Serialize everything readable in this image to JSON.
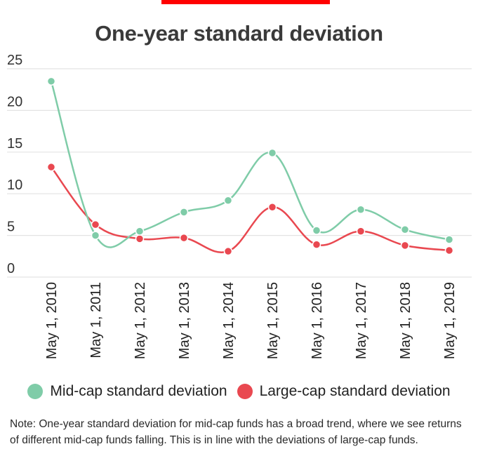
{
  "colors": {
    "accent_bar": "#ff0000",
    "mid_cap": "#7fcca8",
    "large_cap": "#e94850",
    "grid": "#e3e3e3"
  },
  "chart_data": {
    "type": "line",
    "title": "One-year standard deviation",
    "x": [
      "May 1, 2010",
      "May 1, 2011",
      "May 1, 2012",
      "May 1, 2013",
      "May 1, 2014",
      "May 1, 2015",
      "May 1, 2016",
      "May 1, 2017",
      "May 1, 2018",
      "May 1, 2019"
    ],
    "series": [
      {
        "name": "Mid-cap standard deviation",
        "color": "#7fcca8",
        "values": [
          23.5,
          5.0,
          5.5,
          7.8,
          9.2,
          14.9,
          5.6,
          8.1,
          5.7,
          4.5
        ]
      },
      {
        "name": "Large-cap standard deviation",
        "color": "#e94850",
        "values": [
          13.2,
          6.3,
          4.6,
          4.7,
          3.1,
          8.4,
          3.9,
          5.5,
          3.8,
          3.2
        ]
      }
    ],
    "ylim": [
      0,
      25
    ],
    "yticks": [
      0,
      5,
      10,
      15,
      20,
      25
    ],
    "grid": true,
    "legend_position": "bottom"
  },
  "note": "Note: One-year standard deviation for mid-cap funds has a broad trend, where we see returns of different mid-cap funds falling. This is in line with the deviations of large-cap funds."
}
